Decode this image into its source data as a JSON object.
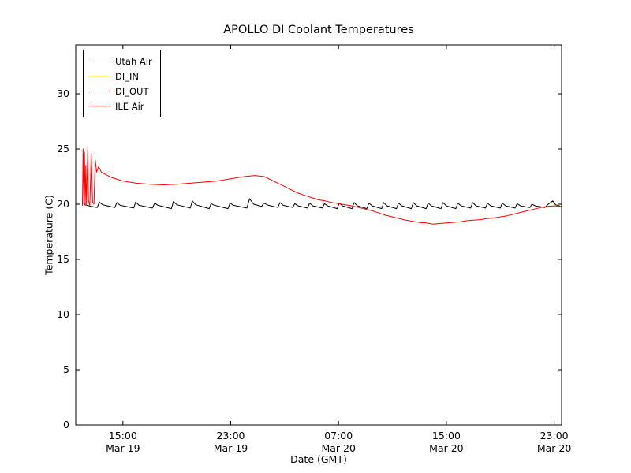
{
  "figure": {
    "background": "#ffffff",
    "axes_border_color": "#000000"
  },
  "chart_data": {
    "type": "line",
    "title": "APOLLO DI Coolant Temperatures",
    "xlabel": "Date (GMT)",
    "ylabel": "Temperature (C)",
    "x_unit": "hours since Mar 19 00:00 GMT",
    "xlim": [
      11.5,
      47.55
    ],
    "ylim": [
      0,
      34.43
    ],
    "grid": false,
    "legend_position": "upper left",
    "y_ticks": [
      0,
      5,
      10,
      15,
      20,
      25,
      30
    ],
    "x_ticks": [
      {
        "v": 15,
        "time": "15:00",
        "date": "Mar 19"
      },
      {
        "v": 23,
        "time": "23:00",
        "date": "Mar 19"
      },
      {
        "v": 31,
        "time": "07:00",
        "date": "Mar 20"
      },
      {
        "v": 39,
        "time": "15:00",
        "date": "Mar 20"
      },
      {
        "v": 47,
        "time": "23:00",
        "date": "Mar 20"
      }
    ],
    "series": [
      {
        "name": "Utah Air",
        "color": "#000000",
        "points": [
          [
            12.0,
            20.15
          ],
          [
            12.2,
            19.95
          ],
          [
            12.5,
            19.85
          ],
          [
            13.1,
            19.7
          ],
          [
            13.25,
            20.2
          ],
          [
            13.5,
            19.95
          ],
          [
            14.4,
            19.7
          ],
          [
            14.55,
            20.15
          ],
          [
            14.8,
            19.9
          ],
          [
            15.8,
            19.65
          ],
          [
            15.95,
            20.2
          ],
          [
            16.2,
            19.9
          ],
          [
            17.2,
            19.65
          ],
          [
            17.35,
            20.1
          ],
          [
            17.6,
            19.9
          ],
          [
            18.6,
            19.6
          ],
          [
            18.75,
            20.25
          ],
          [
            19.0,
            19.95
          ],
          [
            20.0,
            19.65
          ],
          [
            20.15,
            20.3
          ],
          [
            20.4,
            19.95
          ],
          [
            21.4,
            19.6
          ],
          [
            21.55,
            20.05
          ],
          [
            21.8,
            19.9
          ],
          [
            22.8,
            19.6
          ],
          [
            22.95,
            20.1
          ],
          [
            23.2,
            19.9
          ],
          [
            24.2,
            19.65
          ],
          [
            24.4,
            20.5
          ],
          [
            24.7,
            20.0
          ],
          [
            25.3,
            19.8
          ],
          [
            25.45,
            20.1
          ],
          [
            25.8,
            19.9
          ],
          [
            26.5,
            19.7
          ],
          [
            26.65,
            20.15
          ],
          [
            26.9,
            19.9
          ],
          [
            27.6,
            19.7
          ],
          [
            27.75,
            20.05
          ],
          [
            28.0,
            19.85
          ],
          [
            28.7,
            19.65
          ],
          [
            28.85,
            20.1
          ],
          [
            29.1,
            19.85
          ],
          [
            29.8,
            19.65
          ],
          [
            29.95,
            20.05
          ],
          [
            30.2,
            19.85
          ],
          [
            30.9,
            19.6
          ],
          [
            31.05,
            20.1
          ],
          [
            31.3,
            19.85
          ],
          [
            32.0,
            19.6
          ],
          [
            32.15,
            20.15
          ],
          [
            32.4,
            19.85
          ],
          [
            33.1,
            19.6
          ],
          [
            33.25,
            20.1
          ],
          [
            33.5,
            19.85
          ],
          [
            34.2,
            19.6
          ],
          [
            34.35,
            20.15
          ],
          [
            34.6,
            19.85
          ],
          [
            35.3,
            19.6
          ],
          [
            35.45,
            20.1
          ],
          [
            35.7,
            19.85
          ],
          [
            36.4,
            19.6
          ],
          [
            36.55,
            20.15
          ],
          [
            36.8,
            19.85
          ],
          [
            37.5,
            19.6
          ],
          [
            37.65,
            20.1
          ],
          [
            37.9,
            19.85
          ],
          [
            38.6,
            19.6
          ],
          [
            38.75,
            20.15
          ],
          [
            39.0,
            19.85
          ],
          [
            39.7,
            19.6
          ],
          [
            39.85,
            20.1
          ],
          [
            40.1,
            19.85
          ],
          [
            40.8,
            19.65
          ],
          [
            40.95,
            20.15
          ],
          [
            41.2,
            19.85
          ],
          [
            41.9,
            19.65
          ],
          [
            42.05,
            20.1
          ],
          [
            42.3,
            19.85
          ],
          [
            43.0,
            19.65
          ],
          [
            43.15,
            20.1
          ],
          [
            43.4,
            19.85
          ],
          [
            44.1,
            19.65
          ],
          [
            44.25,
            20.05
          ],
          [
            44.5,
            19.85
          ],
          [
            45.2,
            19.7
          ],
          [
            45.35,
            20.0
          ],
          [
            45.6,
            19.85
          ],
          [
            46.3,
            19.7
          ],
          [
            46.5,
            19.95
          ],
          [
            46.9,
            20.3
          ],
          [
            47.1,
            19.95
          ],
          [
            47.4,
            19.85
          ]
        ]
      },
      {
        "name": "DI_IN",
        "color": "#ffa500",
        "points": []
      },
      {
        "name": "DI_OUT",
        "color": "#800080",
        "points": []
      },
      {
        "name": "ILE Air",
        "color": "#ff0000",
        "points": [
          [
            12.0,
            19.9
          ],
          [
            12.05,
            25.0
          ],
          [
            12.1,
            20.1
          ],
          [
            12.15,
            24.7
          ],
          [
            12.2,
            19.9
          ],
          [
            12.25,
            23.5
          ],
          [
            12.3,
            20.0
          ],
          [
            12.4,
            25.1
          ],
          [
            12.45,
            20.3
          ],
          [
            12.55,
            19.9
          ],
          [
            12.65,
            24.6
          ],
          [
            12.75,
            20.2
          ],
          [
            12.85,
            20.0
          ],
          [
            12.95,
            24.0
          ],
          [
            13.05,
            22.9
          ],
          [
            13.2,
            23.4
          ],
          [
            13.4,
            22.9
          ],
          [
            13.7,
            22.7
          ],
          [
            14.2,
            22.4
          ],
          [
            15.0,
            22.1
          ],
          [
            16.0,
            21.9
          ],
          [
            17.0,
            21.8
          ],
          [
            18.0,
            21.75
          ],
          [
            19.0,
            21.8
          ],
          [
            20.0,
            21.9
          ],
          [
            21.0,
            22.0
          ],
          [
            22.0,
            22.1
          ],
          [
            23.0,
            22.3
          ],
          [
            24.0,
            22.5
          ],
          [
            24.8,
            22.6
          ],
          [
            25.5,
            22.5
          ],
          [
            26.0,
            22.2
          ],
          [
            26.5,
            21.9
          ],
          [
            27.0,
            21.6
          ],
          [
            27.5,
            21.3
          ],
          [
            28.0,
            21.0
          ],
          [
            28.5,
            20.8
          ],
          [
            29.0,
            20.6
          ],
          [
            29.5,
            20.4
          ],
          [
            30.0,
            20.3
          ],
          [
            30.5,
            20.15
          ],
          [
            31.0,
            20.05
          ],
          [
            31.5,
            19.95
          ],
          [
            32.0,
            19.85
          ],
          [
            32.5,
            19.7
          ],
          [
            33.0,
            19.55
          ],
          [
            33.5,
            19.4
          ],
          [
            34.0,
            19.2
          ],
          [
            34.5,
            19.0
          ],
          [
            35.0,
            18.85
          ],
          [
            35.5,
            18.7
          ],
          [
            36.0,
            18.55
          ],
          [
            36.5,
            18.45
          ],
          [
            37.0,
            18.35
          ],
          [
            37.5,
            18.3
          ],
          [
            38.0,
            18.2
          ],
          [
            38.5,
            18.25
          ],
          [
            39.0,
            18.3
          ],
          [
            39.5,
            18.35
          ],
          [
            40.0,
            18.4
          ],
          [
            40.5,
            18.5
          ],
          [
            41.0,
            18.55
          ],
          [
            41.5,
            18.6
          ],
          [
            42.0,
            18.7
          ],
          [
            42.5,
            18.75
          ],
          [
            43.0,
            18.85
          ],
          [
            43.5,
            18.95
          ],
          [
            44.0,
            19.1
          ],
          [
            44.5,
            19.25
          ],
          [
            45.0,
            19.4
          ],
          [
            45.5,
            19.55
          ],
          [
            46.0,
            19.7
          ],
          [
            46.5,
            19.8
          ],
          [
            47.0,
            19.85
          ],
          [
            47.5,
            19.8
          ]
        ]
      }
    ]
  }
}
